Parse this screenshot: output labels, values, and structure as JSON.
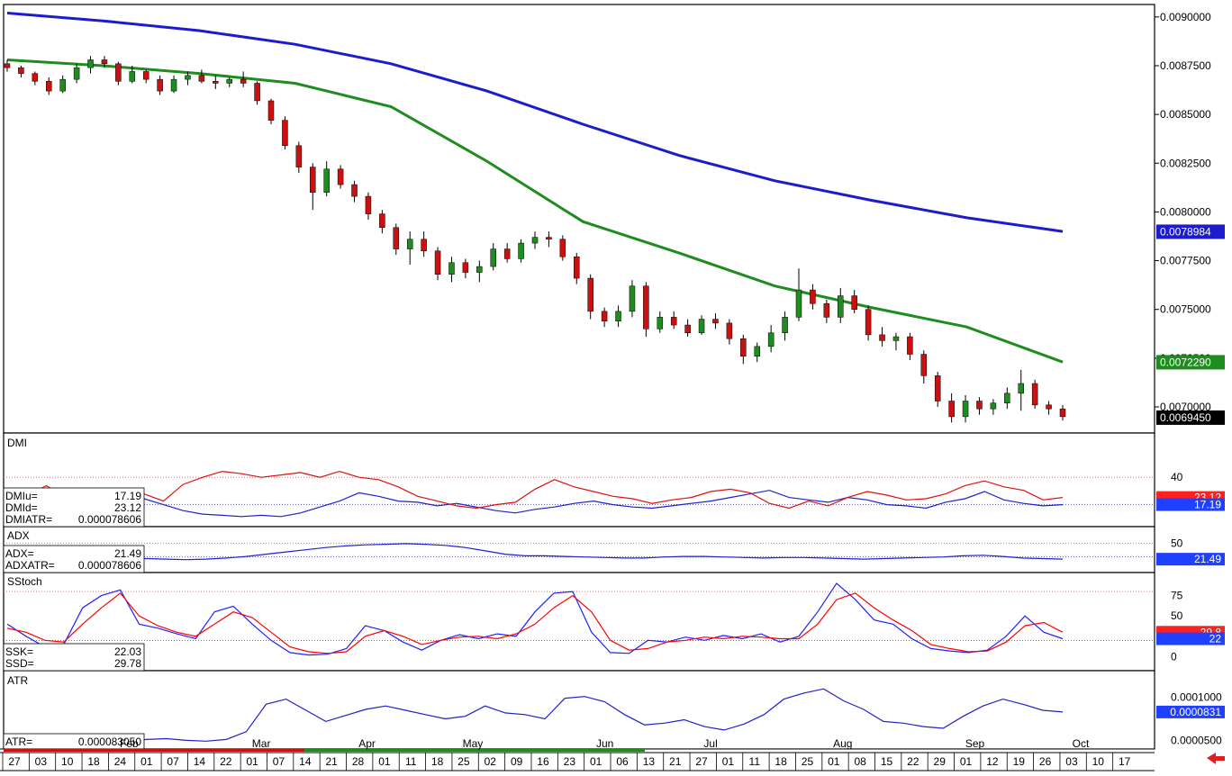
{
  "chart_data": [
    {
      "type": "candlestick",
      "panel": "price",
      "ylim": [
        0.00688,
        0.00905
      ],
      "y_ticks": [
        "0.0090000",
        "0.0087500",
        "0.0085000",
        "0.0082500",
        "0.0080000",
        "0.0077500",
        "0.0075000",
        "0.0072500",
        "0.0070000"
      ],
      "last_values": {
        "ma_long": "0.0078984",
        "ma_short": "0.0072290",
        "close": "0.0069450"
      },
      "series": [
        {
          "name": "",
          "color": "#1c1ccc",
          "values": [
            0.00902,
            0.00898,
            0.00893,
            0.00886,
            0.00876,
            0.00862,
            0.00845,
            0.00829,
            0.00816,
            0.00806,
            0.00797,
            0.0079
          ]
        },
        {
          "name": "",
          "color": "#1e8c1e",
          "values": [
            0.00878,
            0.00875,
            0.00871,
            0.00866,
            0.00854,
            0.00826,
            0.00795,
            0.00779,
            0.00762,
            0.00751,
            0.00741,
            0.00723
          ]
        }
      ],
      "candles": [
        [
          0.00876,
          0.00878,
          0.00872,
          0.00874
        ],
        [
          0.00874,
          0.00875,
          0.00869,
          0.00871
        ],
        [
          0.00871,
          0.00872,
          0.00865,
          0.00867
        ],
        [
          0.00867,
          0.00869,
          0.0086,
          0.00862
        ],
        [
          0.00862,
          0.0087,
          0.00861,
          0.00868
        ],
        [
          0.00868,
          0.00876,
          0.00866,
          0.00874
        ],
        [
          0.00874,
          0.0088,
          0.00871,
          0.00878
        ],
        [
          0.00878,
          0.0088,
          0.00874,
          0.00876
        ],
        [
          0.00876,
          0.00877,
          0.00865,
          0.00867
        ],
        [
          0.00867,
          0.00875,
          0.00866,
          0.00872
        ],
        [
          0.00872,
          0.00873,
          0.00866,
          0.00868
        ],
        [
          0.00868,
          0.0087,
          0.0086,
          0.00862
        ],
        [
          0.00862,
          0.0087,
          0.00861,
          0.00868
        ],
        [
          0.00868,
          0.00872,
          0.00865,
          0.0087
        ],
        [
          0.0087,
          0.00873,
          0.00866,
          0.00867
        ],
        [
          0.00867,
          0.0087,
          0.00863,
          0.00866
        ],
        [
          0.00866,
          0.00869,
          0.00864,
          0.00868
        ],
        [
          0.00868,
          0.00872,
          0.00864,
          0.00866
        ],
        [
          0.00866,
          0.00867,
          0.00855,
          0.00857
        ],
        [
          0.00857,
          0.00858,
          0.00845,
          0.00847
        ],
        [
          0.00847,
          0.00849,
          0.00832,
          0.00834
        ],
        [
          0.00834,
          0.00836,
          0.0082,
          0.00823
        ],
        [
          0.00823,
          0.00825,
          0.00801,
          0.0081
        ],
        [
          0.0081,
          0.00826,
          0.00808,
          0.00822
        ],
        [
          0.00822,
          0.00824,
          0.00812,
          0.00814
        ],
        [
          0.00814,
          0.00816,
          0.00805,
          0.00808
        ],
        [
          0.00808,
          0.0081,
          0.00796,
          0.00799
        ],
        [
          0.00799,
          0.00801,
          0.00789,
          0.00792
        ],
        [
          0.00792,
          0.00794,
          0.00778,
          0.00781
        ],
        [
          0.00781,
          0.0079,
          0.00773,
          0.00786
        ],
        [
          0.00786,
          0.0079,
          0.00777,
          0.0078
        ],
        [
          0.0078,
          0.00782,
          0.00765,
          0.00768
        ],
        [
          0.00768,
          0.00777,
          0.00764,
          0.00774
        ],
        [
          0.00774,
          0.00776,
          0.00766,
          0.00769
        ],
        [
          0.00769,
          0.00775,
          0.00764,
          0.00772
        ],
        [
          0.00772,
          0.00784,
          0.0077,
          0.00781
        ],
        [
          0.00781,
          0.00784,
          0.00774,
          0.00776
        ],
        [
          0.00776,
          0.00786,
          0.00774,
          0.00784
        ],
        [
          0.00784,
          0.0079,
          0.00781,
          0.00787
        ],
        [
          0.00787,
          0.0079,
          0.00782,
          0.00786
        ],
        [
          0.00786,
          0.00788,
          0.00775,
          0.00777
        ],
        [
          0.00777,
          0.00779,
          0.00763,
          0.00766
        ],
        [
          0.00766,
          0.00768,
          0.00745,
          0.00749
        ],
        [
          0.00749,
          0.00751,
          0.00741,
          0.00744
        ],
        [
          0.00744,
          0.00752,
          0.00741,
          0.00749
        ],
        [
          0.00749,
          0.00765,
          0.00746,
          0.00762
        ],
        [
          0.00762,
          0.00764,
          0.00736,
          0.0074
        ],
        [
          0.0074,
          0.00749,
          0.00738,
          0.00746
        ],
        [
          0.00746,
          0.00749,
          0.0074,
          0.00742
        ],
        [
          0.00742,
          0.00745,
          0.00736,
          0.00738
        ],
        [
          0.00738,
          0.00747,
          0.00737,
          0.00745
        ],
        [
          0.00745,
          0.00748,
          0.0074,
          0.00743
        ],
        [
          0.00743,
          0.00745,
          0.00732,
          0.00735
        ],
        [
          0.00735,
          0.00737,
          0.00722,
          0.00726
        ],
        [
          0.00726,
          0.00733,
          0.00723,
          0.00731
        ],
        [
          0.00731,
          0.00742,
          0.00728,
          0.00738
        ],
        [
          0.00738,
          0.00749,
          0.00734,
          0.00746
        ],
        [
          0.00746,
          0.00771,
          0.00744,
          0.0076
        ],
        [
          0.0076,
          0.00763,
          0.0075,
          0.00753
        ],
        [
          0.00753,
          0.00755,
          0.00743,
          0.00746
        ],
        [
          0.00746,
          0.00761,
          0.00743,
          0.00757
        ],
        [
          0.00757,
          0.0076,
          0.00748,
          0.0075
        ],
        [
          0.0075,
          0.00752,
          0.00734,
          0.00737
        ],
        [
          0.00737,
          0.00741,
          0.00731,
          0.00734
        ],
        [
          0.00734,
          0.00738,
          0.00729,
          0.00736
        ],
        [
          0.00736,
          0.00738,
          0.00724,
          0.00727
        ],
        [
          0.00727,
          0.00729,
          0.00712,
          0.00716
        ],
        [
          0.00716,
          0.00718,
          0.007,
          0.00703
        ],
        [
          0.00703,
          0.00707,
          0.00692,
          0.00695
        ],
        [
          0.00695,
          0.00706,
          0.00692,
          0.00703
        ],
        [
          0.00703,
          0.00705,
          0.00696,
          0.00699
        ],
        [
          0.00699,
          0.00704,
          0.00696,
          0.00702
        ],
        [
          0.00702,
          0.0071,
          0.00699,
          0.00707
        ],
        [
          0.00707,
          0.00719,
          0.00698,
          0.00712
        ],
        [
          0.00712,
          0.00714,
          0.00699,
          0.00701
        ],
        [
          0.00701,
          0.00703,
          0.00696,
          0.00699
        ],
        [
          0.00699,
          0.00701,
          0.00693,
          0.00695
        ]
      ]
    },
    {
      "type": "line",
      "panel": "DMI",
      "title": "DMI",
      "ylim": [
        0,
        75
      ],
      "y_ticks": [
        "40"
      ],
      "ref_lines": [
        40,
        17.19
      ],
      "readouts": [
        [
          "DMIu=",
          "17.19"
        ],
        [
          "DMId=",
          "23.12"
        ],
        [
          "DMIATR=",
          "0.000078606"
        ]
      ],
      "badges": [
        {
          "text": "23.12",
          "color": "#ff2020"
        },
        {
          "text": "17.19",
          "color": "#2040ff"
        }
      ],
      "series": [
        {
          "name": "DMIu",
          "color": "#2020cc",
          "values": [
            22,
            26,
            23,
            25,
            28,
            24,
            20,
            22,
            17,
            12,
            9,
            8,
            7,
            8,
            7,
            10,
            15,
            20,
            27,
            24,
            20,
            19,
            16,
            18,
            15,
            12,
            10,
            13,
            15,
            18,
            20,
            17,
            15,
            14,
            16,
            18,
            20,
            23,
            26,
            29,
            23,
            21,
            19,
            23,
            21,
            17,
            16,
            14,
            19,
            22,
            28,
            21,
            18,
            16,
            17
          ]
        },
        {
          "name": "DMId",
          "color": "#dd1010",
          "values": [
            30,
            24,
            33,
            23,
            24,
            20,
            29,
            26,
            20,
            34,
            40,
            45,
            43,
            40,
            42,
            44,
            40,
            45,
            40,
            38,
            32,
            24,
            20,
            16,
            14,
            17,
            19,
            30,
            38,
            32,
            28,
            24,
            22,
            18,
            21,
            23,
            28,
            30,
            27,
            18,
            14,
            20,
            16,
            23,
            28,
            25,
            21,
            22,
            26,
            33,
            37,
            32,
            29,
            21,
            23
          ]
        }
      ]
    },
    {
      "type": "line",
      "panel": "ADX",
      "title": "ADX",
      "ylim": [
        0,
        75
      ],
      "y_ticks": [
        "50"
      ],
      "ref_lines": [
        50,
        25
      ],
      "readouts": [
        [
          "ADX=",
          "21.49"
        ],
        [
          "ADXATR=",
          "0.000078606"
        ]
      ],
      "badges": [
        {
          "text": "21.49",
          "color": "#2040ff"
        }
      ],
      "series": [
        {
          "name": "ADX",
          "color": "#2020cc",
          "values": [
            22,
            23,
            22,
            22,
            21,
            21,
            22,
            22,
            21,
            20,
            21,
            23,
            26,
            30,
            34,
            38,
            42,
            45,
            47,
            48,
            49,
            48,
            46,
            42,
            36,
            30,
            27,
            27,
            26,
            25,
            24,
            23,
            23,
            25,
            26,
            26,
            25,
            24,
            23,
            24,
            24,
            23,
            22,
            21,
            22,
            23,
            24,
            25,
            27,
            28,
            26,
            23,
            22,
            21
          ]
        }
      ]
    },
    {
      "type": "line",
      "panel": "SStoch",
      "title": "SStoch",
      "ylim": [
        -15,
        100
      ],
      "y_ticks": [
        "75",
        "50",
        "0"
      ],
      "ref_lines": [
        80,
        20
      ],
      "readouts": [
        [
          "SSK=",
          "22.03"
        ],
        [
          "SSD=",
          "29.78"
        ]
      ],
      "badges": [
        {
          "text": "29.8",
          "color": "#ff2020"
        },
        {
          "text": "22",
          "color": "#2040ff"
        }
      ],
      "series": [
        {
          "name": "SSK",
          "color": "#2020ff",
          "values": [
            40,
            25,
            12,
            15,
            60,
            75,
            82,
            40,
            35,
            28,
            22,
            55,
            62,
            40,
            20,
            5,
            2,
            3,
            10,
            38,
            32,
            18,
            8,
            20,
            27,
            22,
            28,
            25,
            55,
            78,
            80,
            30,
            5,
            4,
            20,
            18,
            24,
            20,
            26,
            22,
            28,
            18,
            25,
            55,
            90,
            70,
            45,
            40,
            22,
            10,
            7,
            5,
            8,
            25,
            50,
            30,
            22
          ]
        },
        {
          "name": "SSD",
          "color": "#ff0000",
          "values": [
            35,
            30,
            20,
            18,
            40,
            60,
            78,
            50,
            38,
            30,
            25,
            40,
            55,
            48,
            30,
            12,
            6,
            4,
            6,
            25,
            32,
            25,
            15,
            20,
            24,
            25,
            22,
            28,
            40,
            60,
            75,
            55,
            20,
            8,
            10,
            18,
            20,
            24,
            22,
            25,
            24,
            22,
            22,
            40,
            70,
            78,
            60,
            45,
            32,
            15,
            10,
            6,
            7,
            18,
            38,
            42,
            30
          ]
        }
      ]
    },
    {
      "type": "line",
      "panel": "ATR",
      "title": "ATR",
      "ylim": [
        4.2e-05,
        0.000128
      ],
      "y_ticks": [
        "0.0001000",
        "0.0000500"
      ],
      "readouts": [
        [
          "ATR=",
          "0.000083050"
        ]
      ],
      "badges": [
        {
          "text": "0.0000831",
          "color": "#2040ff"
        }
      ],
      "series": [
        {
          "name": "ATR",
          "color": "#2020cc",
          "values": [
            4.3e-05,
            4.8e-05,
            5.6e-05,
            5.3e-05,
            5.1e-05,
            5e-05,
            4.9e-05,
            5.1e-05,
            5.2e-05,
            5e-05,
            4.9e-05,
            5.1e-05,
            6e-05,
            9.2e-05,
            9.8e-05,
            8.5e-05,
            7.2e-05,
            7.9e-05,
            8.6e-05,
            9e-05,
            8.5e-05,
            8e-05,
            7.5e-05,
            7.8e-05,
            9e-05,
            8.2e-05,
            8e-05,
            7.5e-05,
            9.9e-05,
            0.000101,
            9.5e-05,
            8e-05,
            6.8e-05,
            7e-05,
            7.4e-05,
            6.6e-05,
            6.2e-05,
            6.9e-05,
            8e-05,
            9.8e-05,
            0.000105,
            0.00011,
            9.6e-05,
            8.6e-05,
            7.2e-05,
            7e-05,
            6.6e-05,
            6.4e-05,
            7.8e-05,
            9e-05,
            9.8e-05,
            9.2e-05,
            8.5e-05,
            8.3e-05
          ]
        }
      ]
    }
  ],
  "x_axis": {
    "months": [
      "Feb",
      "Mar",
      "Apr",
      "May",
      "Jun",
      "Jul",
      "Aug",
      "Sep",
      "Oct"
    ],
    "days": [
      "27",
      "03",
      "10",
      "18",
      "24",
      "01",
      "07",
      "14",
      "22",
      "01",
      "07",
      "14",
      "21",
      "28",
      "01",
      "11",
      "18",
      "25",
      "02",
      "09",
      "16",
      "23",
      "01",
      "06",
      "13",
      "21",
      "27",
      "01",
      "11",
      "18",
      "25",
      "01",
      "08",
      "15",
      "22",
      "29",
      "01",
      "12",
      "19",
      "26",
      "03",
      "10",
      "17"
    ]
  },
  "colors": {
    "ma_long": "#1c1ccc",
    "ma_short": "#1e8c1e",
    "close_badge": "#000000",
    "up_candle": "#1e8c1e",
    "down_candle": "#cc1010",
    "nav_arrow": "#e02020"
  },
  "icons": {
    "nav": "red-left-arrow-icon"
  }
}
